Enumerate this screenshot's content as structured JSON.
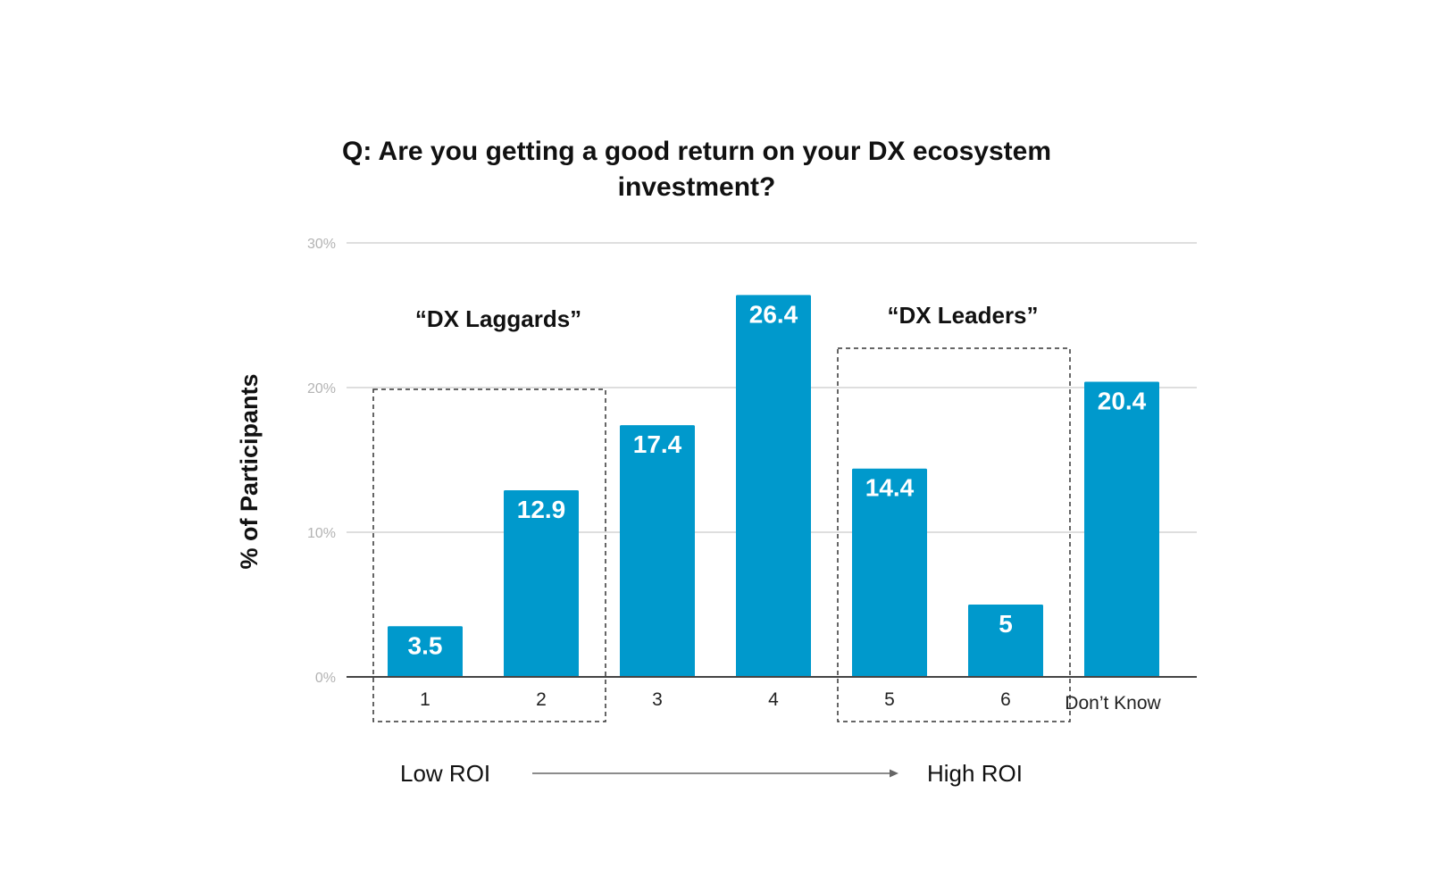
{
  "chart_data": {
    "type": "bar",
    "title": "Q: Are you getting a good return on your DX ecosystem investment?",
    "ylabel": "% of Participants",
    "xlabel": "",
    "categories": [
      "1",
      "2",
      "3",
      "4",
      "5",
      "6",
      "Don’t Know"
    ],
    "values": [
      3.5,
      12.9,
      17.4,
      26.4,
      14.4,
      5,
      20.4
    ],
    "data_labels": [
      "3.5",
      "12.9",
      "17.4",
      "26.4",
      "14.4",
      "5",
      "20.4"
    ],
    "ylim": [
      0,
      30
    ],
    "y_ticks": [
      0,
      10,
      20,
      30
    ],
    "y_tick_labels": [
      "0%",
      "10%",
      "20%",
      "30%"
    ],
    "grid": true,
    "bar_color": "#0099cc",
    "groups": [
      {
        "label": "“DX Laggards”",
        "categories": [
          "1",
          "2"
        ]
      },
      {
        "label": "“DX Leaders”",
        "categories": [
          "5",
          "6"
        ]
      }
    ],
    "roi_axis": {
      "low_label": "Low ROI",
      "high_label": "High ROI"
    }
  }
}
